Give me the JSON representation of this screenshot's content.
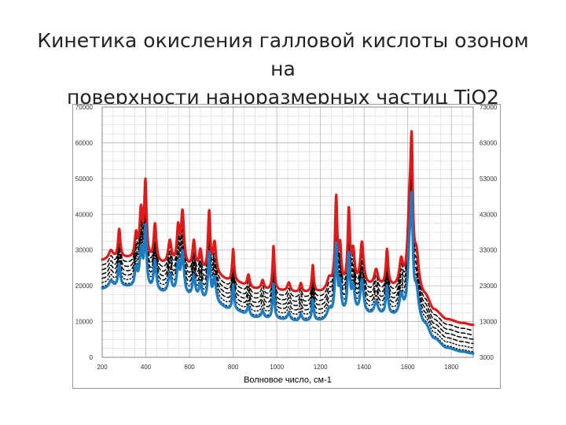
{
  "title_lines": [
    "Кинетика окисления галловой кислоты озоном на",
    "поверхности наноразмерных частиц TiO2"
  ],
  "chart_data": {
    "type": "line",
    "title": "Кинетика окисления галловой кислоты озоном на поверхности наноразмерных частиц TiO2",
    "xlabel": "Волновое число, см-1",
    "ylabel": "",
    "xlim": [
      200,
      1900
    ],
    "x_ticks": [
      200,
      400,
      600,
      800,
      1000,
      1200,
      1400,
      1600,
      1800
    ],
    "x_tick_labels": [
      "200",
      "400",
      "600",
      "800",
      "1000",
      "1200",
      "1400",
      "1600",
      "1800"
    ],
    "ylim_left": [
      0,
      70000
    ],
    "y_ticks_left": [
      0,
      10000,
      20000,
      30000,
      40000,
      50000,
      60000,
      70000
    ],
    "y_tick_labels_left": [
      "0",
      "10000",
      "20000",
      "30000",
      "40000",
      "50000",
      "60000",
      "70000"
    ],
    "ylim_right": [
      3000,
      73000
    ],
    "y_ticks_right": [
      3000,
      13000,
      23000,
      33000,
      43000,
      53000,
      63000,
      73000
    ],
    "y_tick_labels_right": [
      "3000",
      "13000",
      "23000",
      "33000",
      "43000",
      "53000",
      "63000",
      "73000"
    ],
    "grid": true,
    "colors": {
      "top_series": "#e01a1a",
      "bottom_series": "#1a7dc4",
      "intermediate_series": "#000000"
    },
    "baseline_anchors": [
      [
        200,
        19000
      ],
      [
        300,
        19500
      ],
      [
        400,
        18500
      ],
      [
        500,
        17500
      ],
      [
        600,
        16500
      ],
      [
        700,
        15000
      ],
      [
        800,
        13000
      ],
      [
        900,
        11000
      ],
      [
        1000,
        10500
      ],
      [
        1100,
        10000
      ],
      [
        1200,
        10000
      ],
      [
        1300,
        11500
      ],
      [
        1400,
        11500
      ],
      [
        1500,
        11500
      ],
      [
        1550,
        11000
      ],
      [
        1620,
        10500
      ],
      [
        1680,
        8500
      ],
      [
        1720,
        5000
      ],
      [
        1780,
        2500
      ],
      [
        1850,
        1500
      ],
      [
        1900,
        1000
      ]
    ],
    "peaks": [
      {
        "x": 240,
        "height": 2500,
        "width": 12
      },
      {
        "x": 278,
        "height": 8000,
        "width": 6
      },
      {
        "x": 355,
        "height": 6500,
        "width": 7
      },
      {
        "x": 378,
        "height": 13500,
        "width": 8
      },
      {
        "x": 398,
        "height": 21000,
        "width": 6
      },
      {
        "x": 442,
        "height": 10500,
        "width": 7
      },
      {
        "x": 510,
        "height": 6500,
        "width": 9
      },
      {
        "x": 548,
        "height": 10000,
        "width": 7
      },
      {
        "x": 568,
        "height": 15000,
        "width": 8
      },
      {
        "x": 620,
        "height": 7500,
        "width": 7
      },
      {
        "x": 650,
        "height": 5500,
        "width": 7
      },
      {
        "x": 690,
        "height": 17000,
        "width": 6
      },
      {
        "x": 715,
        "height": 8500,
        "width": 8
      },
      {
        "x": 800,
        "height": 9000,
        "width": 5
      },
      {
        "x": 870,
        "height": 3500,
        "width": 7
      },
      {
        "x": 935,
        "height": 2500,
        "width": 7
      },
      {
        "x": 985,
        "height": 12500,
        "width": 5
      },
      {
        "x": 1055,
        "height": 2500,
        "width": 8
      },
      {
        "x": 1110,
        "height": 2500,
        "width": 6
      },
      {
        "x": 1165,
        "height": 7500,
        "width": 5
      },
      {
        "x": 1240,
        "height": 3000,
        "width": 12
      },
      {
        "x": 1272,
        "height": 24500,
        "width": 6
      },
      {
        "x": 1290,
        "height": 10000,
        "width": 6
      },
      {
        "x": 1330,
        "height": 20500,
        "width": 6
      },
      {
        "x": 1350,
        "height": 9000,
        "width": 8
      },
      {
        "x": 1390,
        "height": 12000,
        "width": 9
      },
      {
        "x": 1455,
        "height": 4500,
        "width": 10
      },
      {
        "x": 1505,
        "height": 10000,
        "width": 6
      },
      {
        "x": 1570,
        "height": 7000,
        "width": 10
      },
      {
        "x": 1608,
        "height": 20000,
        "width": 10
      },
      {
        "x": 1618,
        "height": 32000,
        "width": 6
      },
      {
        "x": 1640,
        "height": 9000,
        "width": 12
      }
    ],
    "series_offsets": [
      8000,
      6500,
      5200,
      4000,
      2800,
      1600,
      500,
      0
    ],
    "series_styles": [
      "solid-red",
      "dashed-black",
      "dashed-black",
      "dashed-black",
      "dashed-black",
      "dotted-black",
      "dotted-black",
      "solid-blue"
    ]
  }
}
